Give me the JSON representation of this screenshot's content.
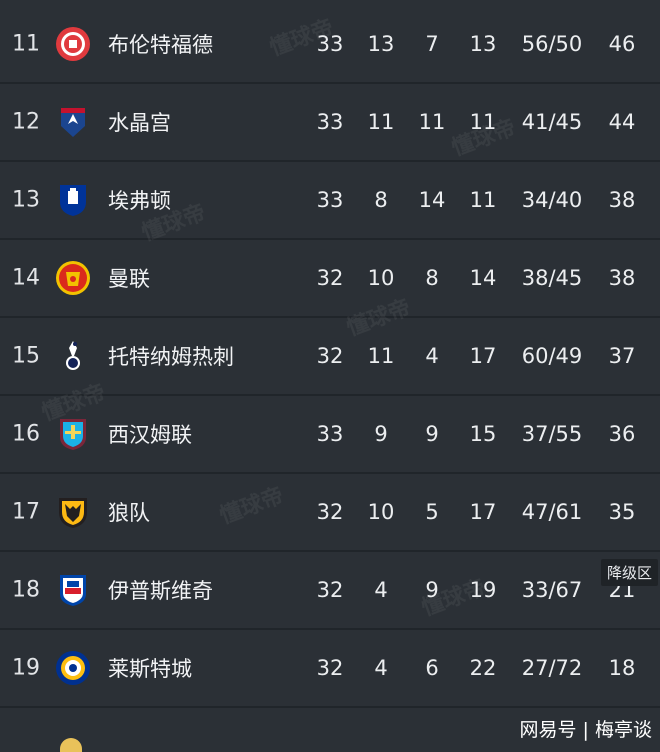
{
  "rows": [
    {
      "rank": "11",
      "team": "布伦特福德",
      "p": "33",
      "w": "13",
      "d": "7",
      "l": "13",
      "g": "56/50",
      "pts": "46",
      "logo": "brentford-logo-icon"
    },
    {
      "rank": "12",
      "team": "水晶宫",
      "p": "33",
      "w": "11",
      "d": "11",
      "l": "11",
      "g": "41/45",
      "pts": "44",
      "logo": "crystal-palace-logo-icon"
    },
    {
      "rank": "13",
      "team": "埃弗顿",
      "p": "33",
      "w": "8",
      "d": "14",
      "l": "11",
      "g": "34/40",
      "pts": "38",
      "logo": "everton-logo-icon"
    },
    {
      "rank": "14",
      "team": "曼联",
      "p": "32",
      "w": "10",
      "d": "8",
      "l": "14",
      "g": "38/45",
      "pts": "38",
      "logo": "man-utd-logo-icon"
    },
    {
      "rank": "15",
      "team": "托特纳姆热刺",
      "p": "32",
      "w": "11",
      "d": "4",
      "l": "17",
      "g": "60/49",
      "pts": "37",
      "logo": "tottenham-logo-icon"
    },
    {
      "rank": "16",
      "team": "西汉姆联",
      "p": "33",
      "w": "9",
      "d": "9",
      "l": "15",
      "g": "37/55",
      "pts": "36",
      "logo": "west-ham-logo-icon"
    },
    {
      "rank": "17",
      "team": "狼队",
      "p": "32",
      "w": "10",
      "d": "5",
      "l": "17",
      "g": "47/61",
      "pts": "35",
      "logo": "wolves-logo-icon"
    },
    {
      "rank": "18",
      "team": "伊普斯维奇",
      "p": "32",
      "w": "4",
      "d": "9",
      "l": "19",
      "g": "33/67",
      "pts": "21",
      "logo": "ipswich-logo-icon"
    },
    {
      "rank": "19",
      "team": "莱斯特城",
      "p": "32",
      "w": "4",
      "d": "6",
      "l": "22",
      "g": "27/72",
      "pts": "18",
      "logo": "leicester-logo-icon"
    }
  ],
  "relegation_label": "降级区",
  "watermark": "懂球帝",
  "credit": "网易号 | 梅亭谈",
  "colors": {
    "background": "#2b3036",
    "divider": "#20252a",
    "zone_badge": "#1f2327"
  }
}
